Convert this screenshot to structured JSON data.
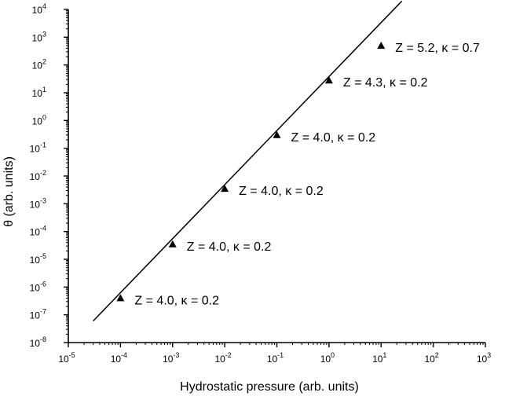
{
  "chart_data": {
    "type": "scatter",
    "title": "",
    "xlabel": "Hydrostatic pressure (arb. units)",
    "ylabel": "θ (arb. units)",
    "xscale": "log",
    "yscale": "log",
    "xlim": [
      1e-05,
      1000
    ],
    "ylim": [
      1e-08,
      10000
    ],
    "grid": false,
    "x_ticks": [
      {
        "value": 1e-05,
        "base": "10",
        "exp": "-5"
      },
      {
        "value": 0.0001,
        "base": "10",
        "exp": "-4"
      },
      {
        "value": 0.001,
        "base": "10",
        "exp": "-3"
      },
      {
        "value": 0.01,
        "base": "10",
        "exp": "-2"
      },
      {
        "value": 0.1,
        "base": "10",
        "exp": "-1"
      },
      {
        "value": 1.0,
        "base": "10",
        "exp": "0"
      },
      {
        "value": 10.0,
        "base": "10",
        "exp": "1"
      },
      {
        "value": 100.0,
        "base": "10",
        "exp": "2"
      },
      {
        "value": 1000.0,
        "base": "10",
        "exp": "3"
      }
    ],
    "y_ticks": [
      {
        "value": 1e-08,
        "base": "10",
        "exp": "-8"
      },
      {
        "value": 1e-07,
        "base": "10",
        "exp": "-7"
      },
      {
        "value": 1e-06,
        "base": "10",
        "exp": "-6"
      },
      {
        "value": 1e-05,
        "base": "10",
        "exp": "-5"
      },
      {
        "value": 0.0001,
        "base": "10",
        "exp": "-4"
      },
      {
        "value": 0.001,
        "base": "10",
        "exp": "-3"
      },
      {
        "value": 0.01,
        "base": "10",
        "exp": "-2"
      },
      {
        "value": 0.1,
        "base": "10",
        "exp": "-1"
      },
      {
        "value": 1.0,
        "base": "10",
        "exp": "0"
      },
      {
        "value": 10.0,
        "base": "10",
        "exp": "1"
      },
      {
        "value": 100.0,
        "base": "10",
        "exp": "2"
      },
      {
        "value": 1000.0,
        "base": "10",
        "exp": "3"
      },
      {
        "value": 10000.0,
        "base": "10",
        "exp": "4"
      }
    ],
    "series": [
      {
        "marker": "triangle",
        "points": [
          {
            "x": 0.0001,
            "y": 4e-07,
            "label": "Z = 4.0, κ = 0.2"
          },
          {
            "x": 0.001,
            "y": 3.5e-05,
            "label": "Z = 4.0, κ = 0.2"
          },
          {
            "x": 0.01,
            "y": 0.0035,
            "label": "Z = 4.0, κ = 0.2"
          },
          {
            "x": 0.1,
            "y": 0.3,
            "label": "Z = 4.0, κ = 0.2"
          },
          {
            "x": 1,
            "y": 28,
            "label": "Z = 4.3, κ = 0.2"
          },
          {
            "x": 10,
            "y": 500,
            "label": "Z = 5.2, κ = 0.7"
          }
        ]
      }
    ],
    "fit_line": {
      "type": "power-law",
      "points": [
        {
          "x": 3e-05,
          "y": 6e-08
        },
        {
          "x": 25,
          "y": 20000
        }
      ]
    }
  }
}
